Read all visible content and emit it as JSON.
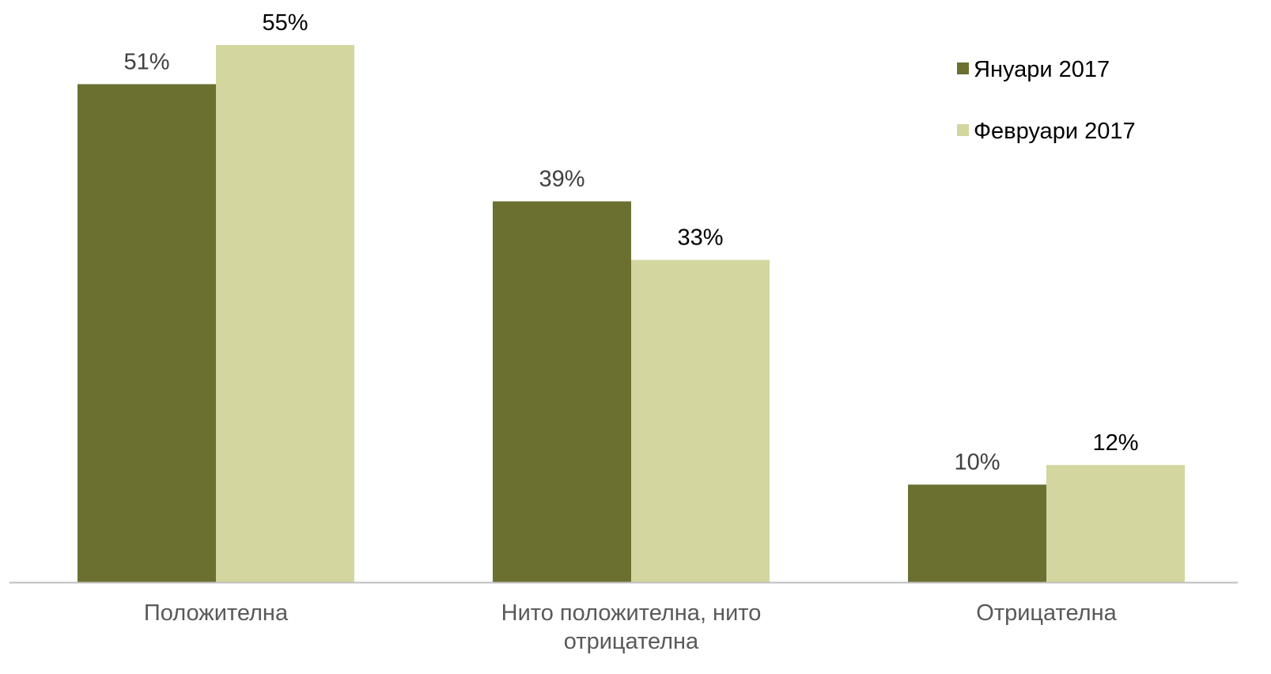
{
  "chart_data": {
    "type": "bar",
    "categories": [
      [
        "Положителна"
      ],
      [
        "Нито положителна, нито",
        "отрицателна"
      ],
      [
        "Отрицателна"
      ]
    ],
    "series": [
      {
        "name": "Януари 2017",
        "color": "#6b7031",
        "label_color": "#404040",
        "values": [
          51,
          39,
          10
        ],
        "labels": [
          "51%",
          "39%",
          "10%"
        ]
      },
      {
        "name": "Февруари 2017",
        "color": "#d3d69f",
        "label_color": "#000000",
        "values": [
          55,
          33,
          12
        ],
        "labels": [
          "55%",
          "33%",
          "12%"
        ]
      }
    ],
    "ylim": [
      0,
      55
    ],
    "unit": "%",
    "grid": false,
    "legend_position": "top-right",
    "axis_color": "#bfbfbf"
  }
}
